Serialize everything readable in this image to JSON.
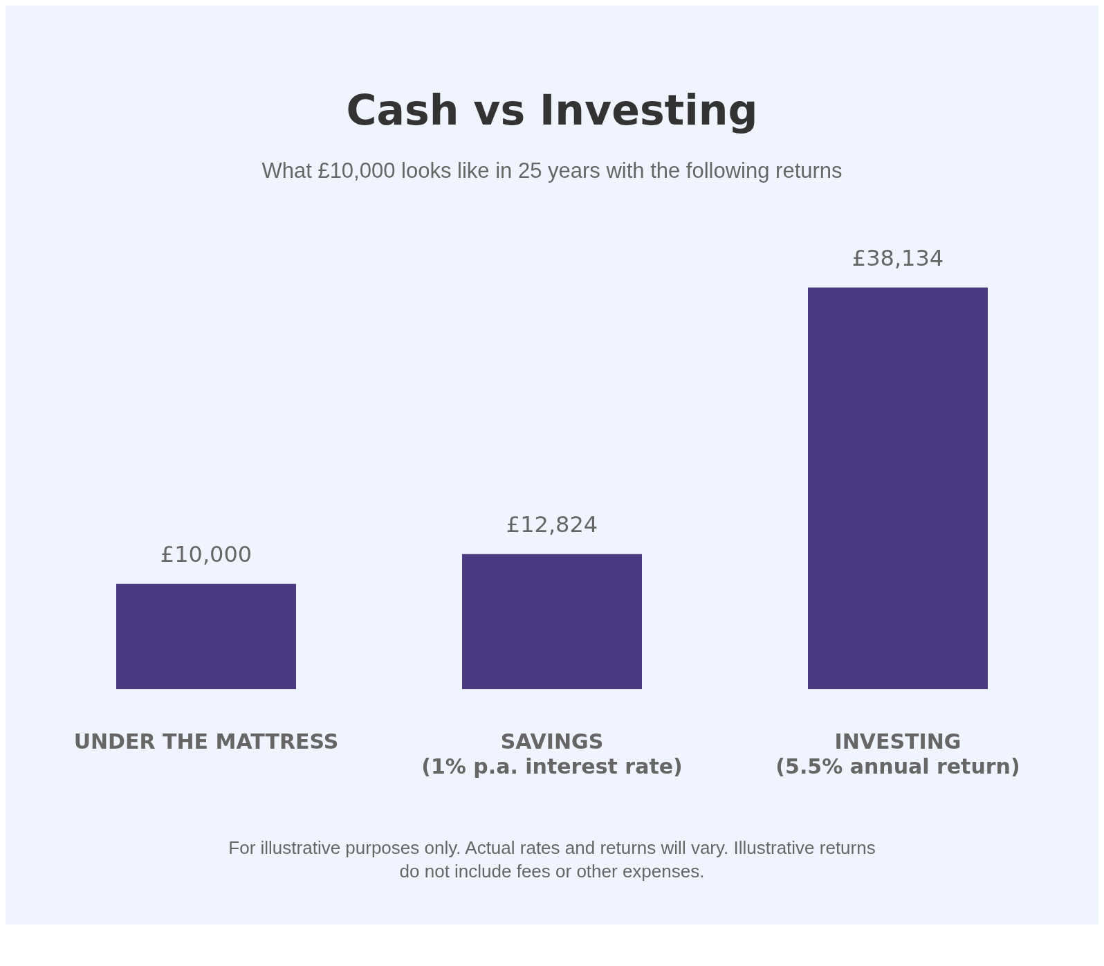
{
  "chart_data": {
    "type": "bar",
    "title": "Cash vs Investing",
    "subtitle": "What £10,000 looks like in 25 years with the following returns",
    "categories": [
      "UNDER THE MATTRESS",
      "SAVINGS\n(1% p.a. interest rate)",
      "INVESTING\n(5.5% annual return)"
    ],
    "values": [
      10000,
      12824,
      38134
    ],
    "value_labels": [
      "£10,000",
      "£12,824",
      "£38,134"
    ],
    "color": "#4b3982",
    "annotations": [
      "For illustrative purposes only. Actual rates and returns will vary. Illustrative returns do not include fees or other expenses."
    ],
    "grid": false,
    "legend": false
  }
}
